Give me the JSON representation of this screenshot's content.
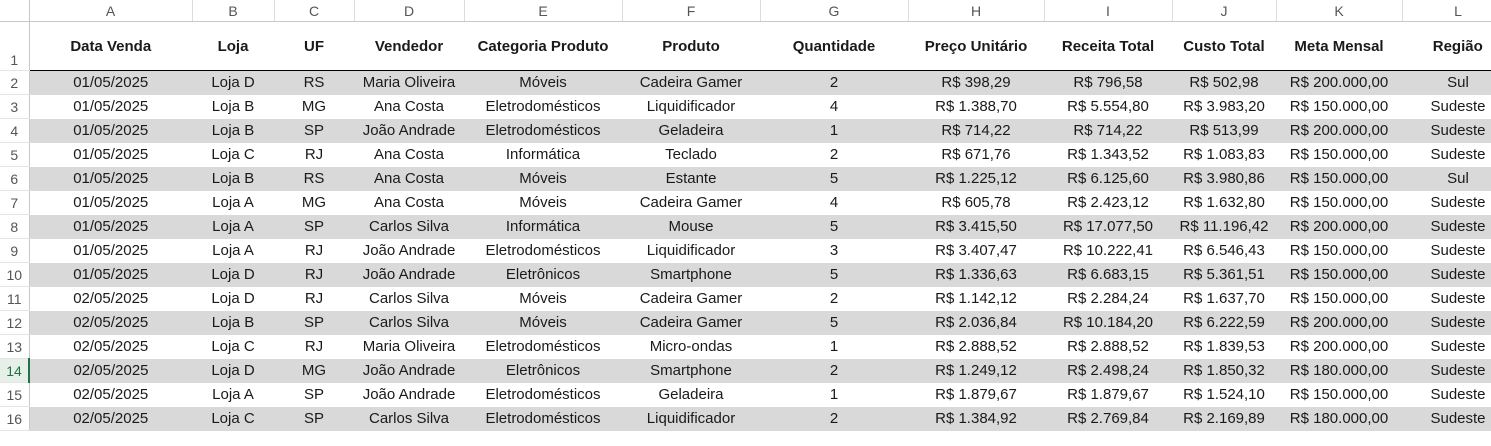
{
  "columns": [
    "A",
    "B",
    "C",
    "D",
    "E",
    "F",
    "G",
    "H",
    "I",
    "J",
    "K",
    "L"
  ],
  "row_numbers": [
    "1",
    "2",
    "3",
    "4",
    "5",
    "6",
    "7",
    "8",
    "9",
    "10",
    "11",
    "12",
    "13",
    "14",
    "15",
    "16"
  ],
  "active_row": "14",
  "headers": [
    "Data Venda",
    "Loja",
    "UF",
    "Vendedor",
    "Categoria Produto",
    "Produto",
    "Quantidade",
    "Preço Unitário",
    "Receita Total",
    "Custo Total",
    "Meta Mensal",
    "Região"
  ],
  "rows": [
    [
      "01/05/2025",
      "Loja D",
      "RS",
      "Maria Oliveira",
      "Móveis",
      "Cadeira Gamer",
      "2",
      "R$ 398,29",
      "R$ 796,58",
      "R$ 502,98",
      "R$ 200.000,00",
      "Sul"
    ],
    [
      "01/05/2025",
      "Loja B",
      "MG",
      "Ana Costa",
      "Eletrodomésticos",
      "Liquidificador",
      "4",
      "R$ 1.388,70",
      "R$ 5.554,80",
      "R$ 3.983,20",
      "R$ 150.000,00",
      "Sudeste"
    ],
    [
      "01/05/2025",
      "Loja B",
      "SP",
      "João Andrade",
      "Eletrodomésticos",
      "Geladeira",
      "1",
      "R$ 714,22",
      "R$ 714,22",
      "R$ 513,99",
      "R$ 200.000,00",
      "Sudeste"
    ],
    [
      "01/05/2025",
      "Loja C",
      "RJ",
      "Ana Costa",
      "Informática",
      "Teclado",
      "2",
      "R$ 671,76",
      "R$ 1.343,52",
      "R$ 1.083,83",
      "R$ 150.000,00",
      "Sudeste"
    ],
    [
      "01/05/2025",
      "Loja B",
      "RS",
      "Ana Costa",
      "Móveis",
      "Estante",
      "5",
      "R$ 1.225,12",
      "R$ 6.125,60",
      "R$ 3.980,86",
      "R$ 150.000,00",
      "Sul"
    ],
    [
      "01/05/2025",
      "Loja A",
      "MG",
      "Ana Costa",
      "Móveis",
      "Cadeira Gamer",
      "4",
      "R$ 605,78",
      "R$ 2.423,12",
      "R$ 1.632,80",
      "R$ 150.000,00",
      "Sudeste"
    ],
    [
      "01/05/2025",
      "Loja A",
      "SP",
      "Carlos Silva",
      "Informática",
      "Mouse",
      "5",
      "R$ 3.415,50",
      "R$ 17.077,50",
      "R$ 11.196,42",
      "R$ 200.000,00",
      "Sudeste"
    ],
    [
      "01/05/2025",
      "Loja A",
      "RJ",
      "João Andrade",
      "Eletrodomésticos",
      "Liquidificador",
      "3",
      "R$ 3.407,47",
      "R$ 10.222,41",
      "R$ 6.546,43",
      "R$ 150.000,00",
      "Sudeste"
    ],
    [
      "01/05/2025",
      "Loja D",
      "RJ",
      "João Andrade",
      "Eletrônicos",
      "Smartphone",
      "5",
      "R$ 1.336,63",
      "R$ 6.683,15",
      "R$ 5.361,51",
      "R$ 150.000,00",
      "Sudeste"
    ],
    [
      "02/05/2025",
      "Loja D",
      "RJ",
      "Carlos Silva",
      "Móveis",
      "Cadeira Gamer",
      "2",
      "R$ 1.142,12",
      "R$ 2.284,24",
      "R$ 1.637,70",
      "R$ 150.000,00",
      "Sudeste"
    ],
    [
      "02/05/2025",
      "Loja B",
      "SP",
      "Carlos Silva",
      "Móveis",
      "Cadeira Gamer",
      "5",
      "R$ 2.036,84",
      "R$ 10.184,20",
      "R$ 6.222,59",
      "R$ 200.000,00",
      "Sudeste"
    ],
    [
      "02/05/2025",
      "Loja C",
      "RJ",
      "Maria Oliveira",
      "Eletrodomésticos",
      "Micro-ondas",
      "1",
      "R$ 2.888,52",
      "R$ 2.888,52",
      "R$ 1.839,53",
      "R$ 200.000,00",
      "Sudeste"
    ],
    [
      "02/05/2025",
      "Loja D",
      "MG",
      "João Andrade",
      "Eletrônicos",
      "Smartphone",
      "2",
      "R$ 1.249,12",
      "R$ 2.498,24",
      "R$ 1.850,32",
      "R$ 180.000,00",
      "Sudeste"
    ],
    [
      "02/05/2025",
      "Loja A",
      "SP",
      "João Andrade",
      "Eletrodomésticos",
      "Geladeira",
      "1",
      "R$ 1.879,67",
      "R$ 1.879,67",
      "R$ 1.524,10",
      "R$ 150.000,00",
      "Sudeste"
    ],
    [
      "02/05/2025",
      "Loja C",
      "SP",
      "Carlos Silva",
      "Eletrodomésticos",
      "Liquidificador",
      "2",
      "R$ 1.384,92",
      "R$ 2.769,84",
      "R$ 2.169,89",
      "R$ 180.000,00",
      "Sudeste"
    ]
  ],
  "colors": {
    "band_fill": "#d9d9d9",
    "active_row_header": "#217346"
  }
}
